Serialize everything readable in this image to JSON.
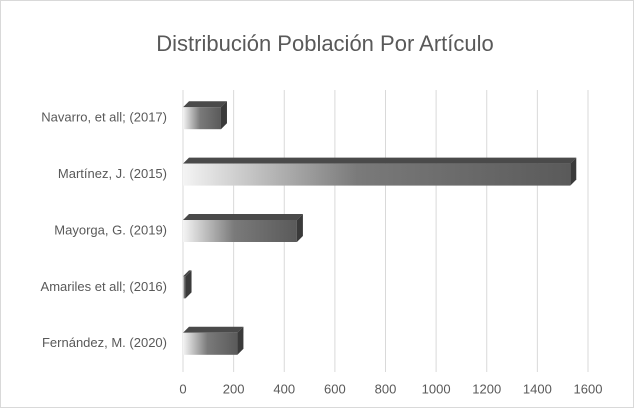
{
  "chart_data": {
    "type": "bar3d",
    "orientation": "horizontal",
    "title": "Distribución Población Por Artículo",
    "categories": [
      "Navarro, et all; (2017)",
      "Martínez, J. (2015)",
      "Mayorga, G. (2019)",
      "Amariles et all; (2016)",
      "Fernández, M. (2020)"
    ],
    "values": [
      150,
      1530,
      450,
      10,
      215
    ],
    "color": "#595959",
    "xlim": [
      0,
      1600
    ],
    "xticks": [
      0,
      200,
      400,
      600,
      800,
      1000,
      1200,
      1400,
      1600
    ],
    "grid": true
  }
}
